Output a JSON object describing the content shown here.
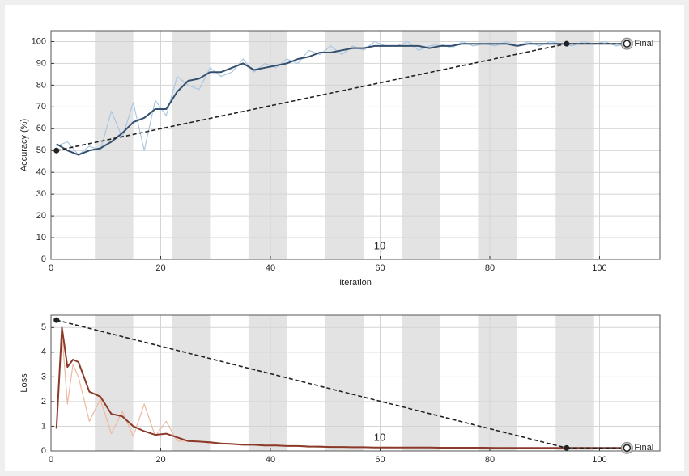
{
  "chart_data": [
    {
      "type": "line",
      "xlabel": "Iteration",
      "ylabel": "Accuracy (%)",
      "xlim": [
        0,
        111
      ],
      "xticks": [
        0,
        20,
        40,
        60,
        80,
        100
      ],
      "ylim": [
        0,
        105
      ],
      "yticks": [
        0,
        10,
        20,
        30,
        40,
        50,
        60,
        70,
        80,
        90,
        100
      ],
      "epochs": [
        [
          8,
          15
        ],
        [
          22,
          29
        ],
        [
          36,
          43
        ],
        [
          50,
          57
        ],
        [
          64,
          71
        ],
        [
          78,
          85
        ],
        [
          92,
          99
        ]
      ],
      "annotation": "10",
      "x": [
        1,
        3,
        5,
        7,
        9,
        11,
        13,
        15,
        17,
        19,
        21,
        23,
        25,
        27,
        29,
        31,
        33,
        35,
        37,
        39,
        41,
        43,
        45,
        47,
        49,
        51,
        53,
        55,
        57,
        59,
        61,
        63,
        65,
        67,
        69,
        71,
        73,
        75,
        77,
        79,
        81,
        83,
        85,
        87,
        89,
        91,
        93,
        95,
        97,
        99,
        101,
        103,
        105
      ],
      "series": [
        {
          "color": "#aac8e2",
          "values": [
            52,
            54,
            48,
            52,
            50,
            68,
            56,
            72,
            50,
            73,
            66,
            84,
            80,
            78,
            88,
            84,
            86,
            92,
            86,
            90,
            88,
            92,
            90,
            96,
            94,
            98,
            94,
            98,
            96,
            100,
            98,
            98,
            100,
            96,
            98,
            99,
            97,
            100,
            98,
            99,
            98,
            100,
            98,
            100,
            98,
            100,
            99,
            98,
            100,
            99,
            100,
            98,
            99
          ]
        },
        {
          "color": "#34506e",
          "values": [
            53,
            50,
            48,
            50,
            51,
            54,
            58,
            63,
            65,
            69,
            69,
            77,
            82,
            83,
            86,
            86,
            88,
            90,
            87,
            88,
            89,
            90,
            92,
            93,
            95,
            95,
            96,
            97,
            97,
            98,
            98,
            98,
            98,
            98,
            97,
            98,
            98,
            99,
            99,
            99,
            99,
            99,
            98,
            99,
            99,
            99,
            99,
            99,
            99,
            99,
            99,
            99,
            99
          ]
        }
      ],
      "validation": {
        "color": "#222222",
        "x": [
          1,
          94
        ],
        "values": [
          50,
          99
        ]
      },
      "final": {
        "x": 105,
        "value": 99,
        "label": "Final"
      }
    },
    {
      "type": "line",
      "ylabel": "Loss",
      "xlim": [
        0,
        111
      ],
      "xticks": [
        0,
        20,
        40,
        60,
        80,
        100
      ],
      "ylim": [
        0,
        5.5
      ],
      "yticks": [
        0,
        1,
        2,
        3,
        4,
        5
      ],
      "epochs": [
        [
          8,
          15
        ],
        [
          22,
          29
        ],
        [
          36,
          43
        ],
        [
          50,
          57
        ],
        [
          64,
          71
        ],
        [
          78,
          85
        ],
        [
          92,
          99
        ]
      ],
      "annotation": "10",
      "x": [
        1,
        2,
        3,
        4,
        5,
        7,
        9,
        11,
        13,
        15,
        17,
        19,
        21,
        23,
        25,
        27,
        29,
        31,
        33,
        35,
        37,
        39,
        41,
        43,
        45,
        47,
        49,
        51,
        53,
        55,
        57,
        59,
        61,
        63,
        65,
        67,
        69,
        71,
        73,
        75,
        77,
        79,
        81,
        83,
        85,
        87,
        89,
        91,
        93,
        95,
        97,
        99,
        101,
        103,
        105
      ],
      "series": [
        {
          "color": "#ecb9a0",
          "values": [
            0.9,
            4.8,
            1.9,
            3.5,
            3.0,
            1.2,
            2.1,
            0.7,
            1.6,
            0.6,
            1.9,
            0.6,
            1.2,
            0.4,
            0.4,
            0.4,
            0.3,
            0.3,
            0.3,
            0.25,
            0.25,
            0.2,
            0.25,
            0.2,
            0.2,
            0.15,
            0.2,
            0.15,
            0.15,
            0.15,
            0.15,
            0.14,
            0.15,
            0.14,
            0.13,
            0.15,
            0.14,
            0.13,
            0.13,
            0.14,
            0.12,
            0.13,
            0.12,
            0.13,
            0.12,
            0.12,
            0.12,
            0.12,
            0.12,
            0.12,
            0.12,
            0.12,
            0.12,
            0.12,
            0.12
          ]
        },
        {
          "color": "#8b3a2a",
          "values": [
            0.9,
            5.0,
            3.4,
            3.7,
            3.6,
            2.4,
            2.2,
            1.5,
            1.4,
            1.0,
            0.8,
            0.65,
            0.7,
            0.55,
            0.4,
            0.38,
            0.35,
            0.3,
            0.28,
            0.25,
            0.25,
            0.22,
            0.22,
            0.2,
            0.2,
            0.18,
            0.17,
            0.16,
            0.16,
            0.15,
            0.15,
            0.14,
            0.14,
            0.14,
            0.14,
            0.14,
            0.14,
            0.13,
            0.13,
            0.13,
            0.13,
            0.13,
            0.12,
            0.12,
            0.12,
            0.12,
            0.12,
            0.12,
            0.12,
            0.12,
            0.12,
            0.12,
            0.12,
            0.12,
            0.12
          ]
        }
      ],
      "validation": {
        "color": "#222222",
        "x": [
          1,
          94
        ],
        "values": [
          5.3,
          0.12
        ]
      },
      "final": {
        "x": 105,
        "value": 0.12,
        "label": "Final"
      }
    }
  ]
}
